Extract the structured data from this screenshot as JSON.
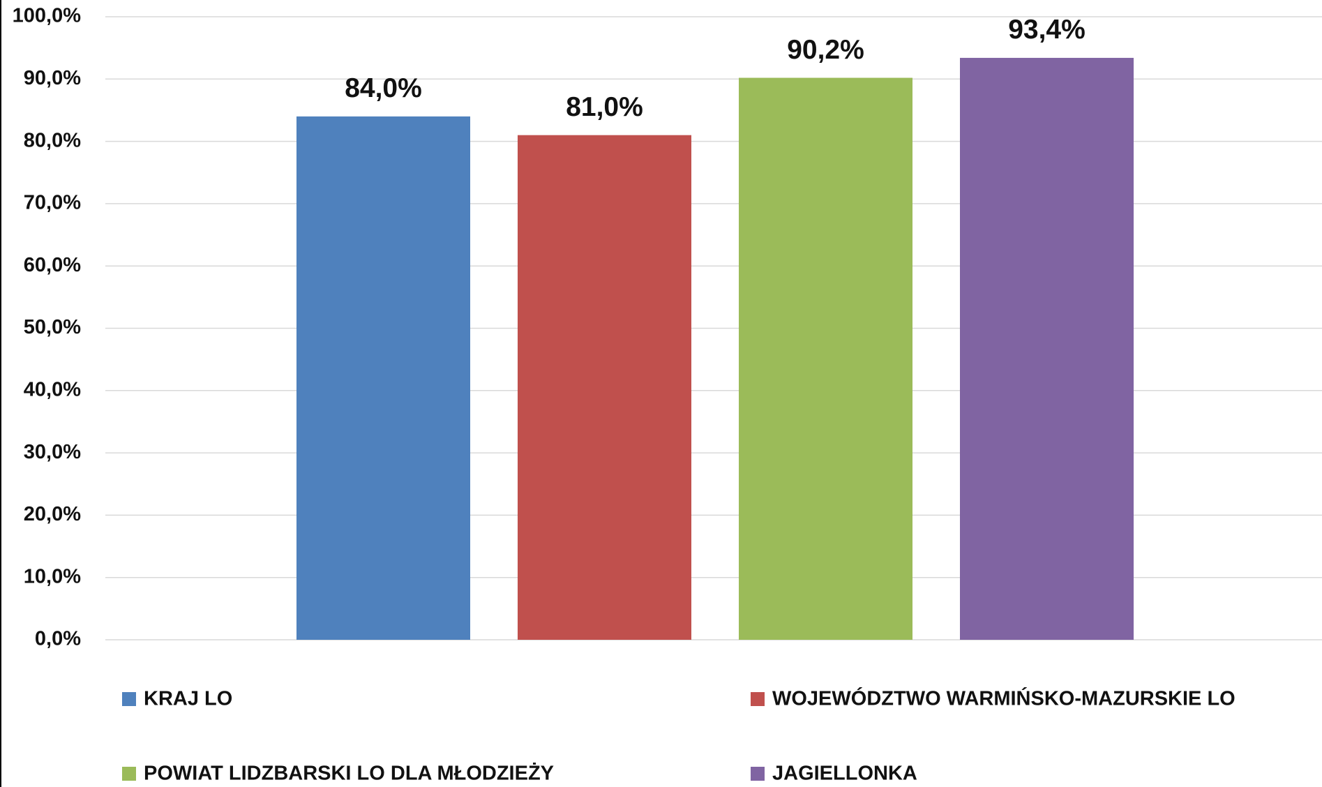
{
  "chart_data": {
    "type": "bar",
    "series": [
      {
        "name": "KRAJ LO",
        "color": "#4f81bd",
        "values": [
          84.0
        ],
        "value_labels": [
          "84,0%"
        ]
      },
      {
        "name": "WOJEWÓDZTWO WARMIŃSKO-MAZURSKIE LO",
        "color": "#c0504d",
        "values": [
          81.0
        ],
        "value_labels": [
          "81,0%"
        ]
      },
      {
        "name": "POWIAT LIDZBARSKI LO DLA MŁODZIEŻY",
        "color": "#9bbb59",
        "values": [
          90.2
        ],
        "value_labels": [
          "90,2%"
        ]
      },
      {
        "name": "JAGIELLONKA",
        "color": "#8064a2",
        "values": [
          93.4
        ],
        "value_labels": [
          "93,4%"
        ]
      }
    ],
    "ylim": [
      0,
      100
    ],
    "yticks": [
      {
        "value": 0,
        "label": "0,0%"
      },
      {
        "value": 10,
        "label": "10,0%"
      },
      {
        "value": 20,
        "label": "20,0%"
      },
      {
        "value": 30,
        "label": "30,0%"
      },
      {
        "value": 40,
        "label": "40,0%"
      },
      {
        "value": 50,
        "label": "50,0%"
      },
      {
        "value": 60,
        "label": "60,0%"
      },
      {
        "value": 70,
        "label": "70,0%"
      },
      {
        "value": 80,
        "label": "80,0%"
      },
      {
        "value": 90,
        "label": "90,0%"
      },
      {
        "value": 100,
        "label": "100,0%"
      }
    ],
    "grid": true,
    "legend": "bottom"
  }
}
